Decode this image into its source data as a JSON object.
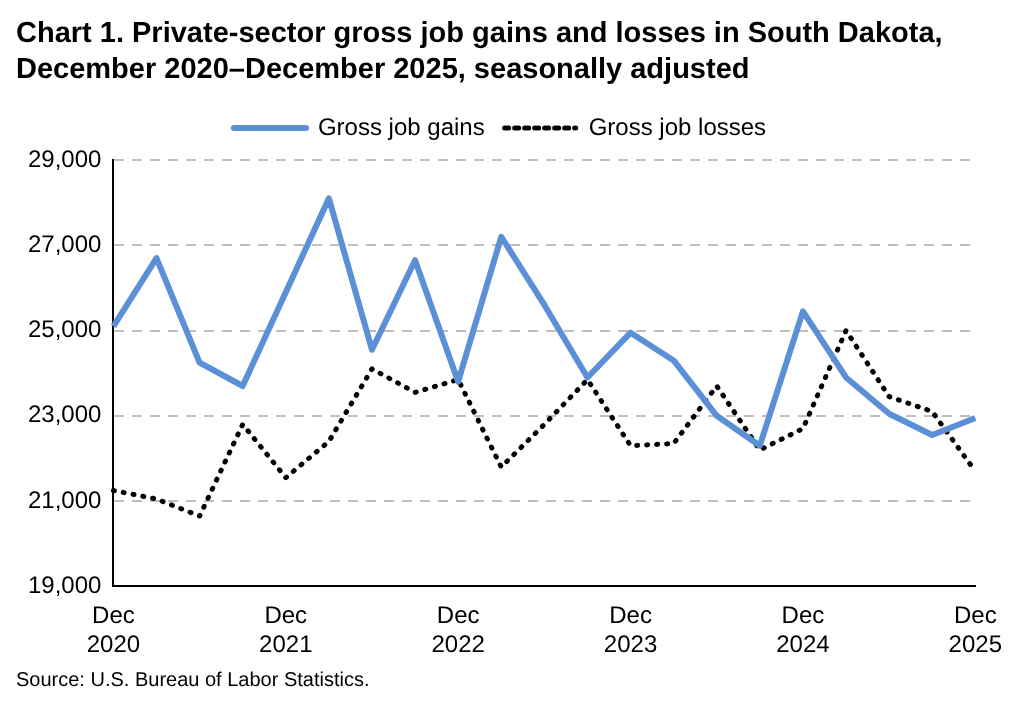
{
  "chart_data": {
    "type": "line",
    "title": "Chart 1. Private-sector gross job gains and losses in South Dakota, December 2020–December 2025, seasonally adjusted",
    "categories": [
      "Dec 2020",
      null,
      null,
      null,
      "Dec 2021",
      null,
      null,
      null,
      "Dec 2022",
      null,
      null,
      null,
      "Dec 2023",
      null,
      null,
      null,
      "Dec 2024",
      null,
      null,
      null,
      "Dec 2025"
    ],
    "series": [
      {
        "name": "Gross job gains",
        "color": "#5b8fd6",
        "line_style": "solid",
        "values": [
          25100,
          26700,
          24250,
          23700,
          25900,
          28100,
          24550,
          26650,
          23800,
          27200,
          25600,
          23900,
          24950,
          24300,
          23000,
          22300,
          25450,
          23900,
          23050,
          22550,
          22950
        ]
      },
      {
        "name": "Gross job losses",
        "color": "#000000",
        "line_style": "dotted",
        "values": [
          21250,
          21050,
          20650,
          22800,
          21550,
          22400,
          24100,
          23550,
          23850,
          21800,
          22800,
          23850,
          22300,
          22350,
          23700,
          22200,
          22700,
          25000,
          23450,
          23100,
          21700
        ]
      }
    ],
    "ylim": [
      19000,
      29000
    ],
    "yticks": [
      {
        "value": 19000,
        "label": "19,000"
      },
      {
        "value": 21000,
        "label": "21,000"
      },
      {
        "value": 23000,
        "label": "23,000"
      },
      {
        "value": 25000,
        "label": "25,000"
      },
      {
        "value": 27000,
        "label": "27,000"
      },
      {
        "value": 29000,
        "label": "29,000"
      }
    ],
    "grid": "y",
    "legend": "top",
    "marker": "none",
    "annotations": [
      "Source: U.S. Bureau of Labor Statistics."
    ]
  }
}
